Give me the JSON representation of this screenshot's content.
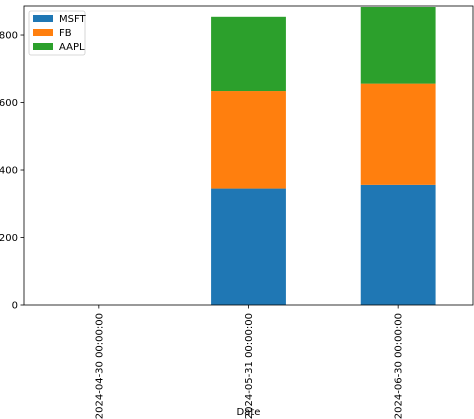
{
  "chart_data": {
    "type": "bar",
    "stacked": true,
    "categories": [
      "2024-04-30 00:00:00",
      "2024-05-31 00:00:00",
      "2024-06-30 00:00:00"
    ],
    "series": [
      {
        "name": "MSFT",
        "color": "#1f77b4",
        "values": [
          0,
          345,
          356
        ]
      },
      {
        "name": "FB",
        "color": "#ff7f0e",
        "values": [
          0,
          289,
          300
        ]
      },
      {
        "name": "AAPL",
        "color": "#2ca02c",
        "values": [
          0,
          220,
          227
        ]
      }
    ],
    "title": "",
    "xlabel": "Date",
    "ylabel": "",
    "ylim": [
      0,
      886
    ],
    "yticks": [
      0,
      200,
      400,
      600,
      800
    ],
    "grid": false,
    "legend_position": "upper-left"
  }
}
